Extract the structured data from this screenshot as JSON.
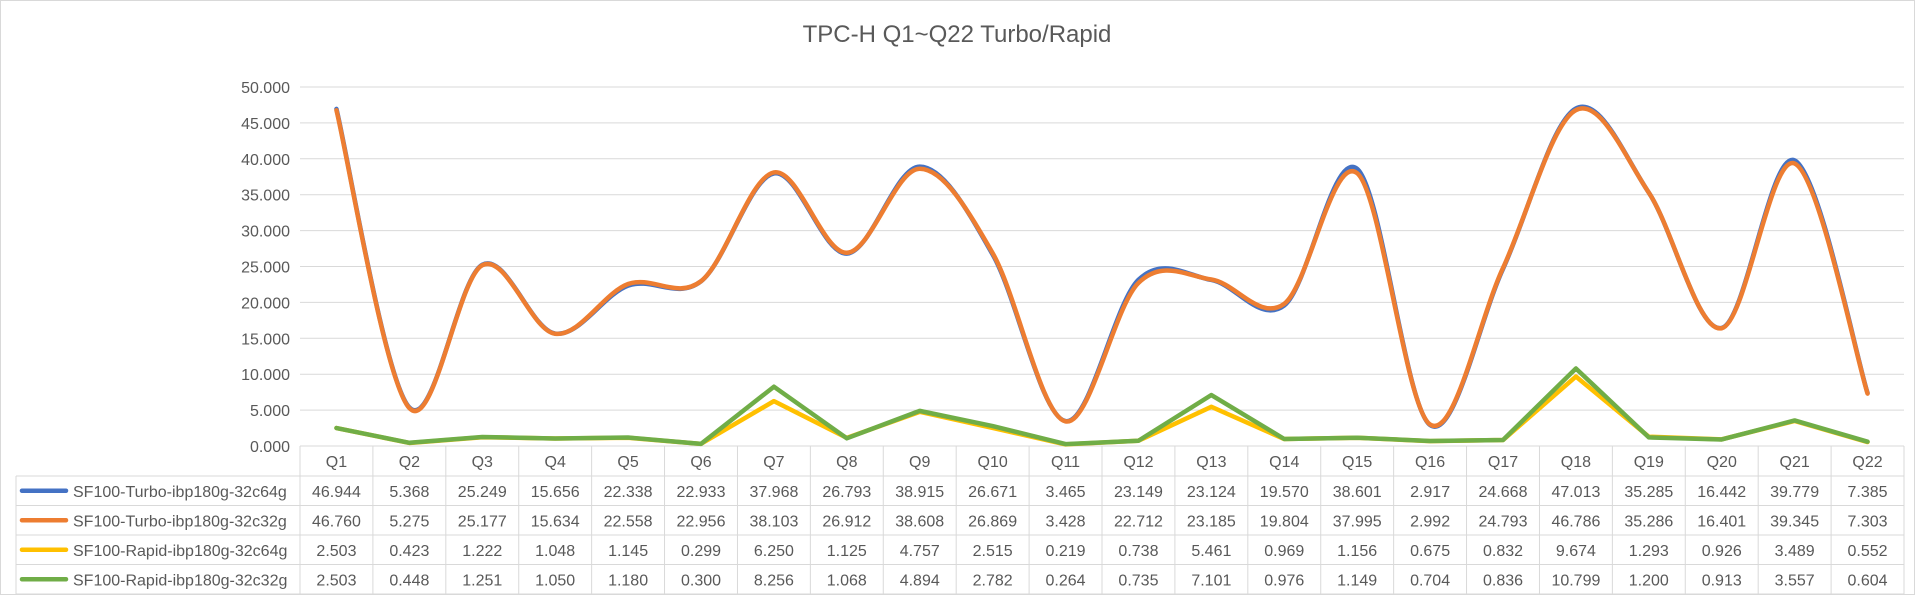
{
  "chart_data": {
    "type": "line",
    "title": "TPC-H Q1~Q22 Turbo/Rapid",
    "categories": [
      "Q1",
      "Q2",
      "Q3",
      "Q4",
      "Q5",
      "Q6",
      "Q7",
      "Q8",
      "Q9",
      "Q10",
      "Q11",
      "Q12",
      "Q13",
      "Q14",
      "Q15",
      "Q16",
      "Q17",
      "Q18",
      "Q19",
      "Q20",
      "Q21",
      "Q22"
    ],
    "ylim": [
      0,
      50
    ],
    "yticks": [
      "0.000",
      "5.000",
      "10.000",
      "15.000",
      "20.000",
      "25.000",
      "30.000",
      "35.000",
      "40.000",
      "45.000",
      "50.000"
    ],
    "grid": true,
    "legend": "data-table",
    "series": [
      {
        "name": "SF100-Turbo-ibp180g-32c64g",
        "color": "#4472c4",
        "smooth": true,
        "values": [
          46.944,
          5.368,
          25.249,
          15.656,
          22.338,
          22.933,
          37.968,
          26.793,
          38.915,
          26.671,
          3.465,
          23.149,
          23.124,
          19.57,
          38.601,
          2.917,
          24.668,
          47.013,
          35.285,
          16.442,
          39.779,
          7.385
        ],
        "labels": [
          "46.944",
          "5.368",
          "25.249",
          "15.656",
          "22.338",
          "22.933",
          "37.968",
          "26.793",
          "38.915",
          "26.671",
          "3.465",
          "23.149",
          "23.124",
          "19.570",
          "38.601",
          "2.917",
          "24.668",
          "47.013",
          "35.285",
          "16.442",
          "39.779",
          "7.385"
        ]
      },
      {
        "name": "SF100-Turbo-ibp180g-32c32g",
        "color": "#ed7d31",
        "smooth": true,
        "values": [
          46.76,
          5.275,
          25.177,
          15.634,
          22.558,
          22.956,
          38.103,
          26.912,
          38.608,
          26.869,
          3.428,
          22.712,
          23.185,
          19.804,
          37.995,
          2.992,
          24.793,
          46.786,
          35.286,
          16.401,
          39.345,
          7.303
        ],
        "labels": [
          "46.760",
          "5.275",
          "25.177",
          "15.634",
          "22.558",
          "22.956",
          "38.103",
          "26.912",
          "38.608",
          "26.869",
          "3.428",
          "22.712",
          "23.185",
          "19.804",
          "37.995",
          "2.992",
          "24.793",
          "46.786",
          "35.286",
          "16.401",
          "39.345",
          "7.303"
        ]
      },
      {
        "name": "SF100-Rapid-ibp180g-32c64g",
        "color": "#ffc000",
        "smooth": false,
        "values": [
          2.503,
          0.423,
          1.222,
          1.048,
          1.145,
          0.299,
          6.25,
          1.125,
          4.757,
          2.515,
          0.219,
          0.738,
          5.461,
          0.969,
          1.156,
          0.675,
          0.832,
          9.674,
          1.293,
          0.926,
          3.489,
          0.552
        ],
        "labels": [
          "2.503",
          "0.423",
          "1.222",
          "1.048",
          "1.145",
          "0.299",
          "6.250",
          "1.125",
          "4.757",
          "2.515",
          "0.219",
          "0.738",
          "5.461",
          "0.969",
          "1.156",
          "0.675",
          "0.832",
          "9.674",
          "1.293",
          "0.926",
          "3.489",
          "0.552"
        ]
      },
      {
        "name": "SF100-Rapid-ibp180g-32c32g",
        "color": "#70ad47",
        "smooth": false,
        "values": [
          2.503,
          0.448,
          1.251,
          1.05,
          1.18,
          0.3,
          8.256,
          1.068,
          4.894,
          2.782,
          0.264,
          0.735,
          7.101,
          0.976,
          1.149,
          0.704,
          0.836,
          10.799,
          1.2,
          0.913,
          3.557,
          0.604
        ],
        "labels": [
          "2.503",
          "0.448",
          "1.251",
          "1.050",
          "1.180",
          "0.300",
          "8.256",
          "1.068",
          "4.894",
          "2.782",
          "0.264",
          "0.735",
          "7.101",
          "0.976",
          "1.149",
          "0.704",
          "0.836",
          "10.799",
          "1.200",
          "0.913",
          "3.557",
          "0.604"
        ]
      }
    ]
  }
}
